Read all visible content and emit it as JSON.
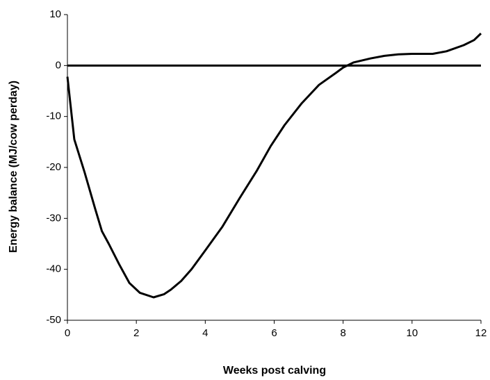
{
  "chart_data": {
    "type": "line",
    "x_label": "Weeks post calving",
    "y_label": "Energy balance (MJ/cow perday)",
    "x": [
      0,
      0.2,
      0.5,
      0.8,
      1.0,
      1.2,
      1.5,
      1.8,
      2.1,
      2.5,
      2.8,
      3.0,
      3.3,
      3.6,
      4.0,
      4.5,
      5.0,
      5.5,
      5.9,
      6.3,
      6.8,
      7.3,
      7.8,
      8.0,
      8.3,
      8.8,
      9.2,
      9.6,
      10.0,
      10.6,
      11.0,
      11.5,
      11.8,
      12.0
    ],
    "series": [
      {
        "color": "#000000",
        "values": [
          -2.2,
          -14.5,
          -21,
          -28,
          -32.5,
          -35,
          -39,
          -42.7,
          -44.6,
          -45.5,
          -44.9,
          -44,
          -42.3,
          -40,
          -36.3,
          -31.6,
          -26,
          -20.6,
          -15.8,
          -11.7,
          -7.4,
          -3.8,
          -1.4,
          -0.4,
          0.6,
          1.4,
          1.9,
          2.2,
          2.3,
          2.3,
          2.8,
          4,
          5,
          6.3
        ]
      }
    ],
    "xlim": [
      0,
      12
    ],
    "xticks": [
      0,
      2,
      4,
      6,
      8,
      10,
      12
    ],
    "ylim": [
      -50,
      10
    ],
    "yticks": [
      -50,
      -40,
      -30,
      -20,
      -10,
      0,
      10
    ],
    "zero_line": true,
    "grid": false
  }
}
